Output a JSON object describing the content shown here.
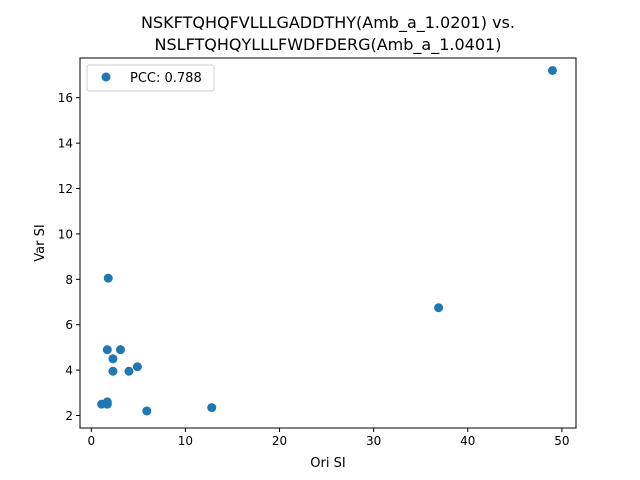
{
  "chart_data": {
    "type": "scatter",
    "title_lines": [
      "NSKFTQHQFVLLLGADDTHY(Amb_a_1.0201) vs.",
      "NSLFTQHQYLLLFWDFDERG(Amb_a_1.0401)"
    ],
    "xlabel": "Ori SI",
    "ylabel": "Var SI",
    "xlim": [
      -1.2,
      51.5
    ],
    "ylim": [
      1.45,
      17.75
    ],
    "xticks": [
      0,
      10,
      20,
      30,
      40,
      50
    ],
    "yticks": [
      2,
      4,
      6,
      8,
      10,
      12,
      14,
      16
    ],
    "grid": false,
    "legend": {
      "position": "top-left",
      "entries": [
        "PCC: 0.788"
      ]
    },
    "series": [
      {
        "color": "#1f77b4",
        "points": [
          {
            "x": 49.0,
            "y": 17.2
          },
          {
            "x": 36.9,
            "y": 6.75
          },
          {
            "x": 1.8,
            "y": 8.05
          },
          {
            "x": 1.7,
            "y": 4.9
          },
          {
            "x": 3.1,
            "y": 4.9
          },
          {
            "x": 2.3,
            "y": 4.5
          },
          {
            "x": 4.9,
            "y": 4.15
          },
          {
            "x": 2.3,
            "y": 3.95
          },
          {
            "x": 4.0,
            "y": 3.95
          },
          {
            "x": 1.1,
            "y": 2.5
          },
          {
            "x": 1.7,
            "y": 2.5
          },
          {
            "x": 1.7,
            "y": 2.6
          },
          {
            "x": 5.9,
            "y": 2.2
          },
          {
            "x": 12.8,
            "y": 2.35
          }
        ]
      }
    ]
  }
}
